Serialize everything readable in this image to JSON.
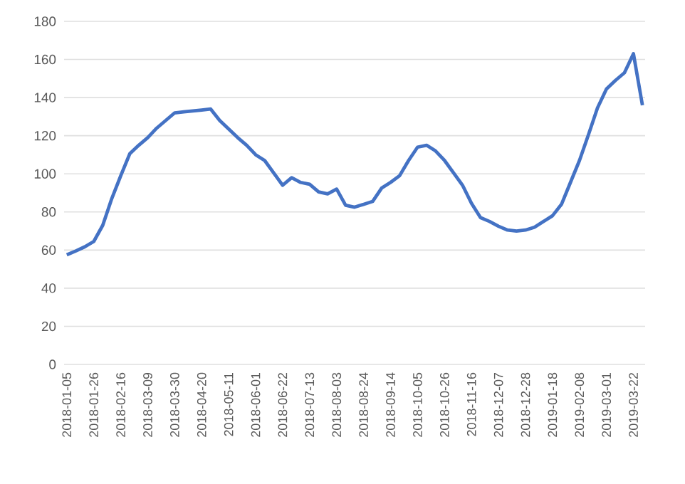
{
  "chart_data": {
    "type": "line",
    "categories": [
      "2018-01-05",
      null,
      null,
      "2018-01-26",
      null,
      null,
      "2018-02-16",
      null,
      null,
      "2018-03-09",
      null,
      null,
      "2018-03-30",
      null,
      null,
      "2018-04-20",
      null,
      null,
      "2018-05-11",
      null,
      null,
      "2018-06-01",
      null,
      null,
      "2018-06-22",
      null,
      null,
      "2018-07-13",
      null,
      null,
      "2018-08-03",
      null,
      null,
      "2018-08-24",
      null,
      null,
      "2018-09-14",
      null,
      null,
      "2018-10-05",
      null,
      null,
      "2018-10-26",
      null,
      null,
      "2018-11-16",
      null,
      null,
      "2018-12-07",
      null,
      null,
      "2018-12-28",
      null,
      null,
      "2019-01-18",
      null,
      null,
      "2019-02-08",
      null,
      null,
      "2019-03-01",
      null,
      null,
      "2019-03-22",
      null
    ],
    "values": [
      57.5,
      59.5,
      61.7,
      64.5,
      73,
      87,
      99,
      110.5,
      115,
      119,
      124,
      128,
      132,
      132.5,
      133,
      133.5,
      134,
      128,
      123.5,
      119,
      115,
      110,
      107,
      100.5,
      94,
      98,
      95.5,
      94.5,
      90.5,
      89.5,
      92,
      83.5,
      82.5,
      84,
      85.5,
      92.5,
      95.5,
      99,
      107,
      114,
      115,
      112,
      107,
      100.5,
      94,
      84.5,
      77,
      75,
      72.5,
      70.5,
      70,
      70.5,
      72,
      75,
      78,
      84,
      95.5,
      107,
      120.5,
      134.5,
      144.5,
      149,
      153,
      163,
      136
    ],
    "color": "#4472c4",
    "ylim": [
      0,
      180
    ],
    "yticks": [
      0,
      20,
      40,
      60,
      80,
      100,
      120,
      140,
      160,
      180
    ],
    "grid": "y",
    "marker": "none",
    "line_style": "solid"
  }
}
